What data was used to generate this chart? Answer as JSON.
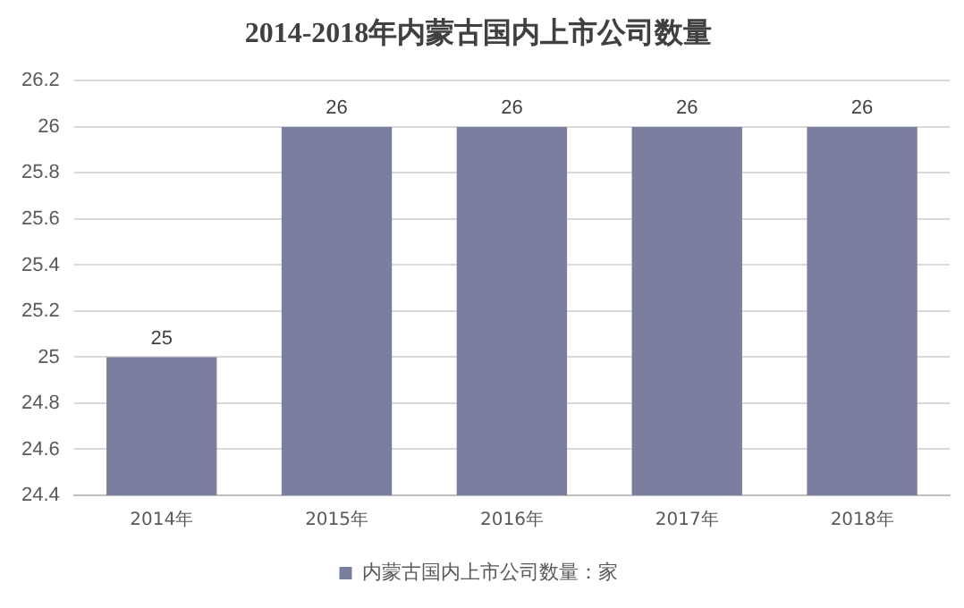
{
  "chart_data": {
    "type": "bar",
    "title": "2014-2018年内蒙古国内上市公司数量",
    "categories": [
      "2014年",
      "2015年",
      "2016年",
      "2017年",
      "2018年"
    ],
    "series": [
      {
        "name": "内蒙古国内上市公司数量：家",
        "color": "#7a7f9f",
        "values": [
          25,
          26,
          26,
          26,
          26
        ]
      }
    ],
    "ylim": [
      24.4,
      26.2
    ],
    "yticks": [
      24.4,
      24.6,
      24.8,
      25,
      25.2,
      25.4,
      25.6,
      25.8,
      26,
      26.2
    ],
    "grid": "y",
    "legend": "bottom",
    "data_labels": true
  }
}
